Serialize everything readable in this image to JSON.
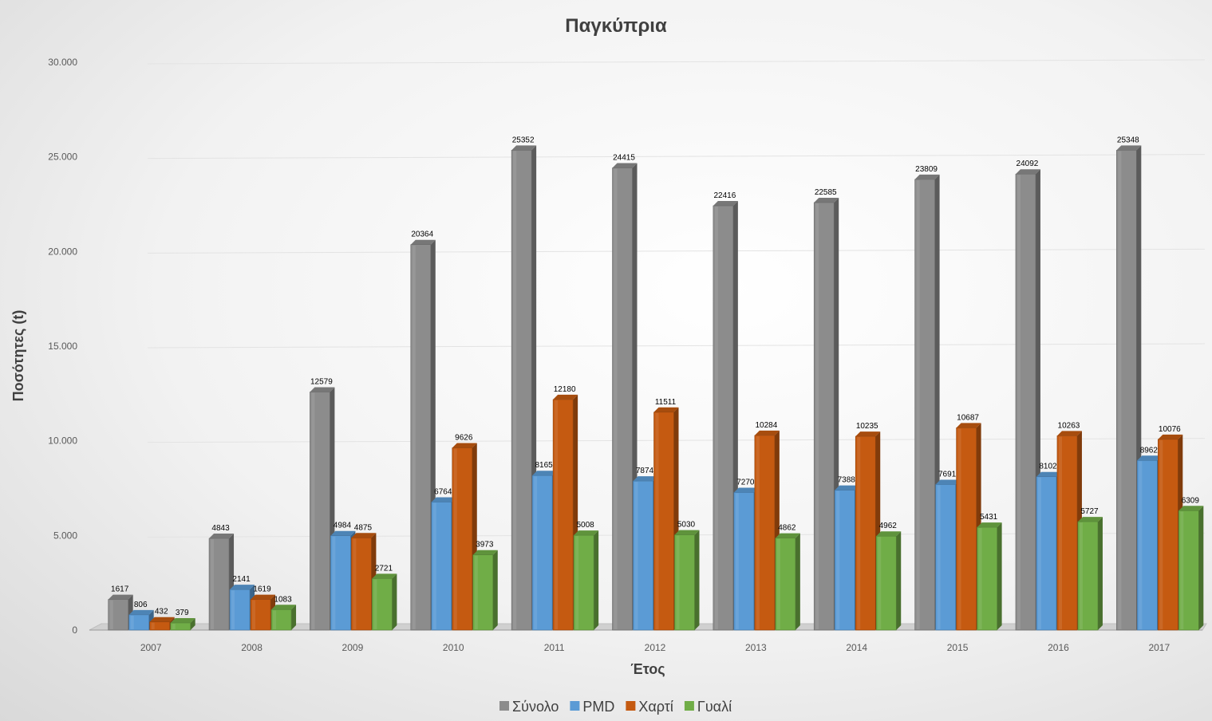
{
  "chart_data": {
    "type": "bar",
    "title": "Παγκύπρια",
    "xlabel": "Έτος",
    "ylabel": "Ποσότητες (t)",
    "categories": [
      "2007",
      "2008",
      "2009",
      "2010",
      "2011",
      "2012",
      "2013",
      "2014",
      "2015",
      "2016",
      "2017"
    ],
    "ylim": [
      0,
      30000
    ],
    "yticks": [
      0,
      5000,
      10000,
      15000,
      20000,
      25000,
      30000
    ],
    "ytick_labels": [
      "0",
      "5.000",
      "10.000",
      "15.000",
      "20.000",
      "25.000",
      "30.000"
    ],
    "grid": true,
    "legend_position": "bottom",
    "series": [
      {
        "name": "Σύνολο",
        "color": "#8c8c8c",
        "values": [
          1617,
          4843,
          12579,
          20364,
          25352,
          24415,
          22416,
          22585,
          23809,
          24092,
          25348
        ]
      },
      {
        "name": "PMD",
        "color": "#5b9bd5",
        "values": [
          806,
          2141,
          4984,
          6764,
          8165,
          7874,
          7270,
          7388,
          7691,
          8102,
          8962
        ]
      },
      {
        "name": "Χαρτί",
        "color": "#c55a11",
        "values": [
          432,
          1619,
          4875,
          9626,
          12180,
          11511,
          10284,
          10235,
          10687,
          10263,
          10076
        ]
      },
      {
        "name": "Γυαλί",
        "color": "#70ad47",
        "values": [
          379,
          1083,
          2721,
          3973,
          5008,
          5030,
          4862,
          4962,
          5431,
          5727,
          6309
        ]
      }
    ]
  }
}
